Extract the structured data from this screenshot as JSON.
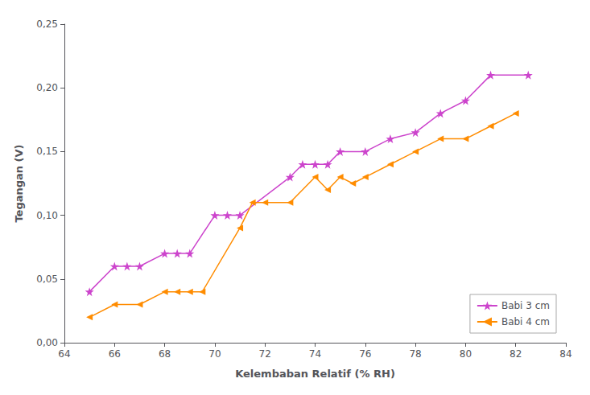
{
  "chart_data": {
    "type": "line",
    "xlabel": "Kelembaban Relatif (% RH)",
    "ylabel": "Tegangan (V)",
    "series": [
      {
        "name": "Babi 3 cm",
        "color": "#cc44cc",
        "marker": "star",
        "x": [
          65,
          66,
          66.5,
          67,
          68,
          68.5,
          69,
          70,
          70.5,
          71,
          73,
          73.5,
          74,
          74.5,
          75,
          76,
          77,
          78,
          79,
          80,
          81,
          82.5
        ],
        "values": [
          0.04,
          0.06,
          0.06,
          0.06,
          0.07,
          0.07,
          0.07,
          0.1,
          0.1,
          0.1,
          0.13,
          0.14,
          0.14,
          0.14,
          0.15,
          0.15,
          0.16,
          0.165,
          0.18,
          0.19,
          0.21,
          0.21
        ]
      },
      {
        "name": "Babi 4 cm",
        "color": "#ff8c00",
        "marker": "triangle-left",
        "x": [
          65,
          66,
          67,
          68,
          68.5,
          69,
          69.5,
          71,
          71.5,
          72,
          73,
          74,
          74.5,
          75,
          75.5,
          76,
          77,
          78,
          79,
          80,
          81,
          82
        ],
        "values": [
          0.02,
          0.03,
          0.03,
          0.04,
          0.04,
          0.04,
          0.04,
          0.09,
          0.11,
          0.11,
          0.11,
          0.13,
          0.12,
          0.13,
          0.125,
          0.13,
          0.14,
          0.15,
          0.16,
          0.16,
          0.17,
          0.18
        ]
      }
    ],
    "xlim": [
      64,
      84
    ],
    "xticks": [
      64,
      66,
      68,
      70,
      72,
      74,
      76,
      78,
      80,
      82,
      84
    ],
    "ylim": [
      0.0,
      0.25
    ],
    "yticks": [
      {
        "value": 0.0,
        "label": "0,00"
      },
      {
        "value": 0.05,
        "label": "0,05"
      },
      {
        "value": 0.1,
        "label": "0,10"
      },
      {
        "value": 0.15,
        "label": "0,15"
      },
      {
        "value": 0.2,
        "label": "0,20"
      },
      {
        "value": 0.25,
        "label": "0,25"
      }
    ],
    "legend": "lower right",
    "grid": false
  }
}
